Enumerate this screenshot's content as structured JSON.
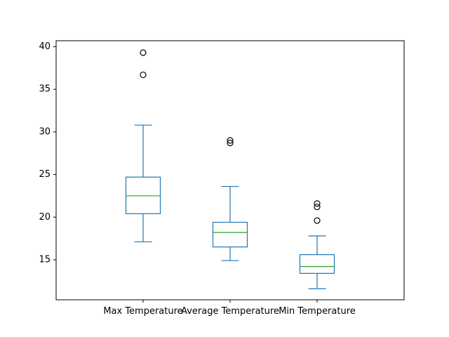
{
  "chart_data": {
    "type": "box",
    "title": "",
    "xlabel": "",
    "ylabel": "",
    "ylim": [
      10.3,
      40.7
    ],
    "yticks": [
      15,
      20,
      25,
      30,
      35,
      40
    ],
    "grid": false,
    "categories": [
      "Max Temperature",
      "Average Temperature",
      "Min Temperature"
    ],
    "boxes": [
      {
        "whislo": 17.1,
        "q1": 20.4,
        "med": 22.5,
        "q3": 24.7,
        "whishi": 30.8,
        "fliers": [
          36.7,
          39.3
        ]
      },
      {
        "whislo": 14.9,
        "q1": 16.5,
        "med": 18.2,
        "q3": 19.4,
        "whishi": 23.6,
        "fliers": [
          28.7,
          29.0
        ]
      },
      {
        "whislo": 11.6,
        "q1": 13.4,
        "med": 14.2,
        "q3": 15.6,
        "whishi": 17.8,
        "fliers": [
          19.6,
          21.2,
          21.6
        ]
      }
    ],
    "colors": {
      "box": "#1f77b4",
      "median": "#2ca02c",
      "flier": "#000000"
    }
  }
}
